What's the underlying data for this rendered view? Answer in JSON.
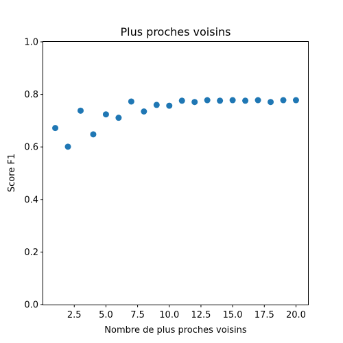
{
  "chart_data": {
    "type": "scatter",
    "title": "Plus proches voisins",
    "xlabel": "Nombre de plus proches voisins",
    "ylabel": "Score F1",
    "xlim": [
      0.05,
      20.95
    ],
    "ylim": [
      0.0,
      1.0
    ],
    "xticks": [
      "2.5",
      "5.0",
      "7.5",
      "10.0",
      "12.5",
      "15.0",
      "17.5",
      "20.0"
    ],
    "yticks": [
      "0.0",
      "0.2",
      "0.4",
      "0.6",
      "0.8",
      "1.0"
    ],
    "grid": false,
    "marker_color": "#1f77b4",
    "x": [
      1,
      2,
      3,
      4,
      5,
      6,
      7,
      8,
      9,
      10,
      11,
      12,
      13,
      14,
      15,
      16,
      17,
      18,
      19,
      20
    ],
    "y": [
      0.672,
      0.601,
      0.738,
      0.648,
      0.724,
      0.711,
      0.773,
      0.735,
      0.76,
      0.757,
      0.776,
      0.771,
      0.778,
      0.776,
      0.778,
      0.776,
      0.778,
      0.771,
      0.778,
      0.778
    ]
  }
}
